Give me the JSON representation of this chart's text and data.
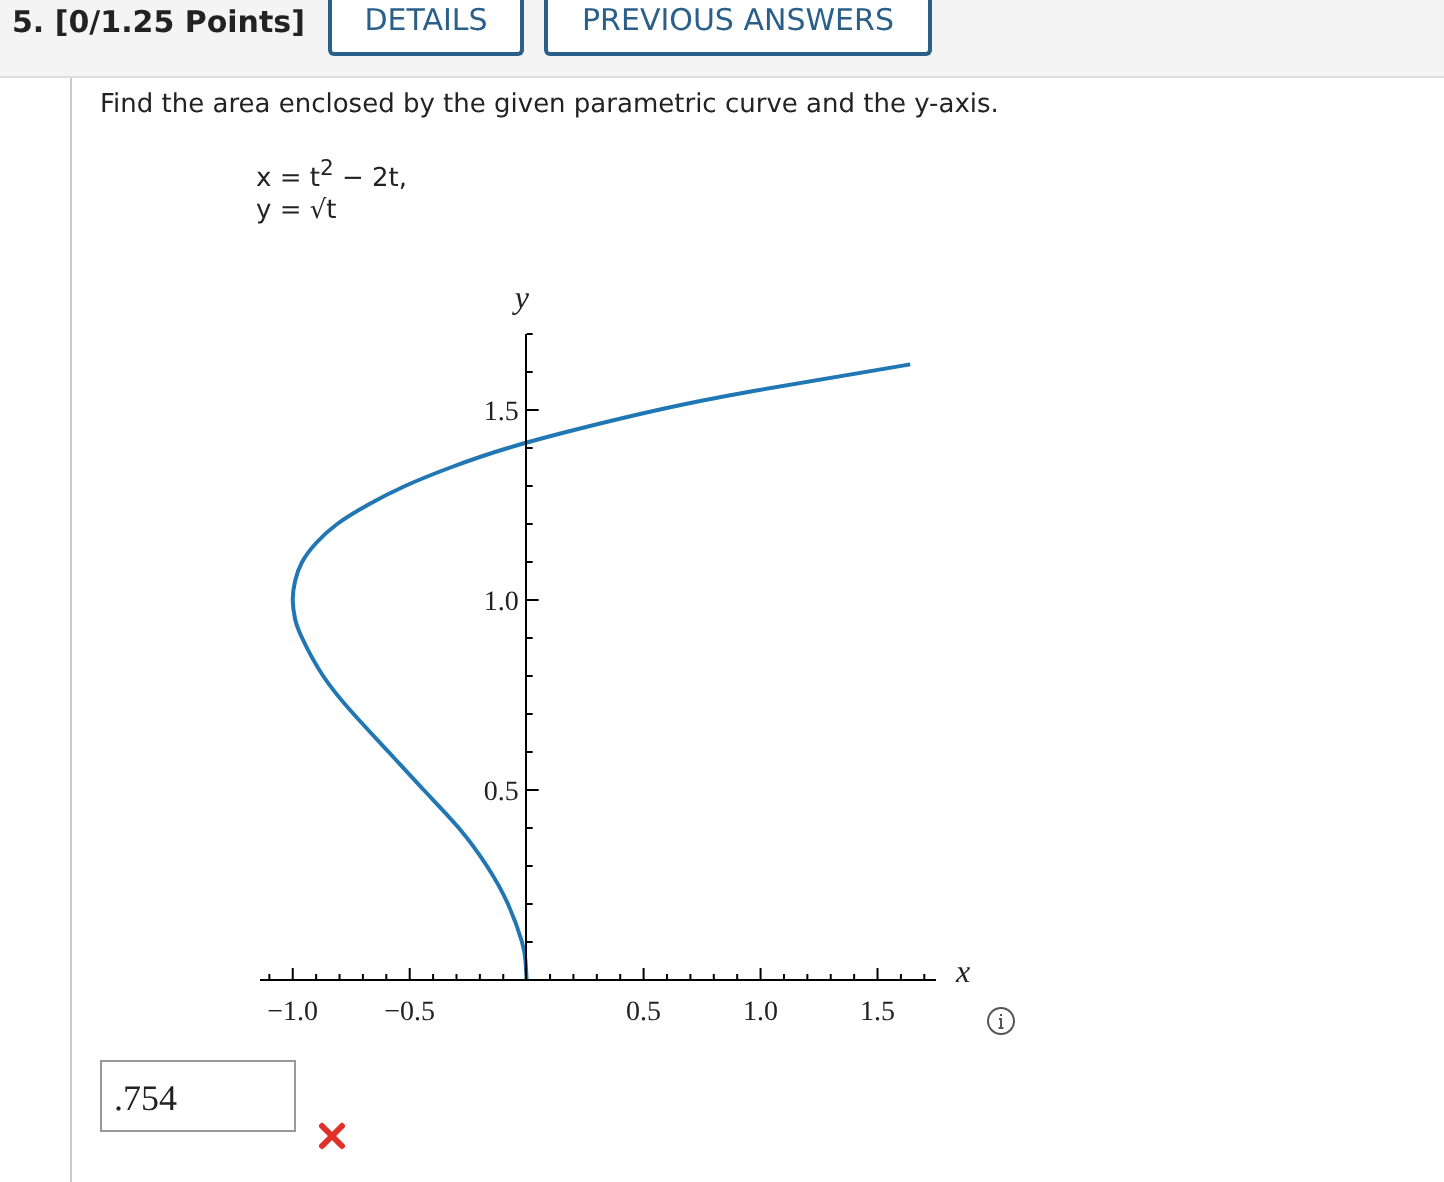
{
  "chart_data": {
    "type": "line",
    "annotations": [
      "5. [0/1.25 Points]",
      "DETAILS",
      "PREVIOUS ANSWERS",
      "Find the area enclosed by the given parametric curve and the y-axis.",
      "x = t$^{2}$ − 2t,",
      "y = √t",
      ".754"
    ],
    "xlabel": "x",
    "ylabel": "y",
    "x": [
      0,
      -0.005,
      -0.02,
      -0.08,
      -0.17,
      -0.29,
      -0.44,
      -0.59,
      -0.74,
      -0.87,
      -0.96,
      -0.99,
      -1.0,
      -0.99,
      -0.96,
      -0.9,
      -0.81,
      -0.68,
      -0.52,
      -0.32,
      -0.08,
      0.22,
      0.56,
      0.97,
      1.64
    ],
    "series": [
      {
        "color": "#2077b4",
        "values": [
          0,
          0.05,
          0.1,
          0.2,
          0.3,
          0.4,
          0.5,
          0.6,
          0.7,
          0.8,
          0.9,
          0.95,
          1.0,
          1.05,
          1.1,
          1.15,
          1.2,
          1.25,
          1.3,
          1.35,
          1.4,
          1.45,
          1.5,
          1.55,
          1.62
        ]
      }
    ],
    "xlim": [
      -1.14,
      1.75
    ],
    "ylim": [
      0,
      1.7
    ],
    "xticks": [
      {
        "value": -1.1,
        "label": null
      },
      {
        "value": -1.0,
        "label": "−1.0"
      },
      {
        "value": -0.9,
        "label": null
      },
      {
        "value": -0.8,
        "label": null
      },
      {
        "value": -0.7,
        "label": null
      },
      {
        "value": -0.6,
        "label": null
      },
      {
        "value": -0.5,
        "label": "−0.5"
      },
      {
        "value": -0.4,
        "label": null
      },
      {
        "value": -0.3,
        "label": null
      },
      {
        "value": -0.2,
        "label": null
      },
      {
        "value": -0.1,
        "label": null
      },
      {
        "value": 0.1,
        "label": null
      },
      {
        "value": 0.2,
        "label": null
      },
      {
        "value": 0.3,
        "label": null
      },
      {
        "value": 0.4,
        "label": null
      },
      {
        "value": 0.5,
        "label": "0.5"
      },
      {
        "value": 0.6,
        "label": null
      },
      {
        "value": 0.7,
        "label": null
      },
      {
        "value": 0.8,
        "label": null
      },
      {
        "value": 0.9,
        "label": null
      },
      {
        "value": 1.0,
        "label": "1.0"
      },
      {
        "value": 1.1,
        "label": null
      },
      {
        "value": 1.2,
        "label": null
      },
      {
        "value": 1.3,
        "label": null
      },
      {
        "value": 1.4,
        "label": null
      },
      {
        "value": 1.5,
        "label": "1.5"
      },
      {
        "value": 1.6,
        "label": null
      },
      {
        "value": 1.7,
        "label": null
      }
    ],
    "yticks": [
      {
        "value": 0.1,
        "label": null
      },
      {
        "value": 0.2,
        "label": null
      },
      {
        "value": 0.3,
        "label": null
      },
      {
        "value": 0.4,
        "label": null
      },
      {
        "value": 0.5,
        "label": "0.5"
      },
      {
        "value": 0.6,
        "label": null
      },
      {
        "value": 0.7,
        "label": null
      },
      {
        "value": 0.8,
        "label": null
      },
      {
        "value": 0.9,
        "label": null
      },
      {
        "value": 1.0,
        "label": "1.0"
      },
      {
        "value": 1.1,
        "label": null
      },
      {
        "value": 1.2,
        "label": null
      },
      {
        "value": 1.3,
        "label": null
      },
      {
        "value": 1.4,
        "label": null
      },
      {
        "value": 1.5,
        "label": "1.5"
      },
      {
        "value": 1.6,
        "label": null
      },
      {
        "value": 1.7,
        "label": null
      }
    ]
  }
}
